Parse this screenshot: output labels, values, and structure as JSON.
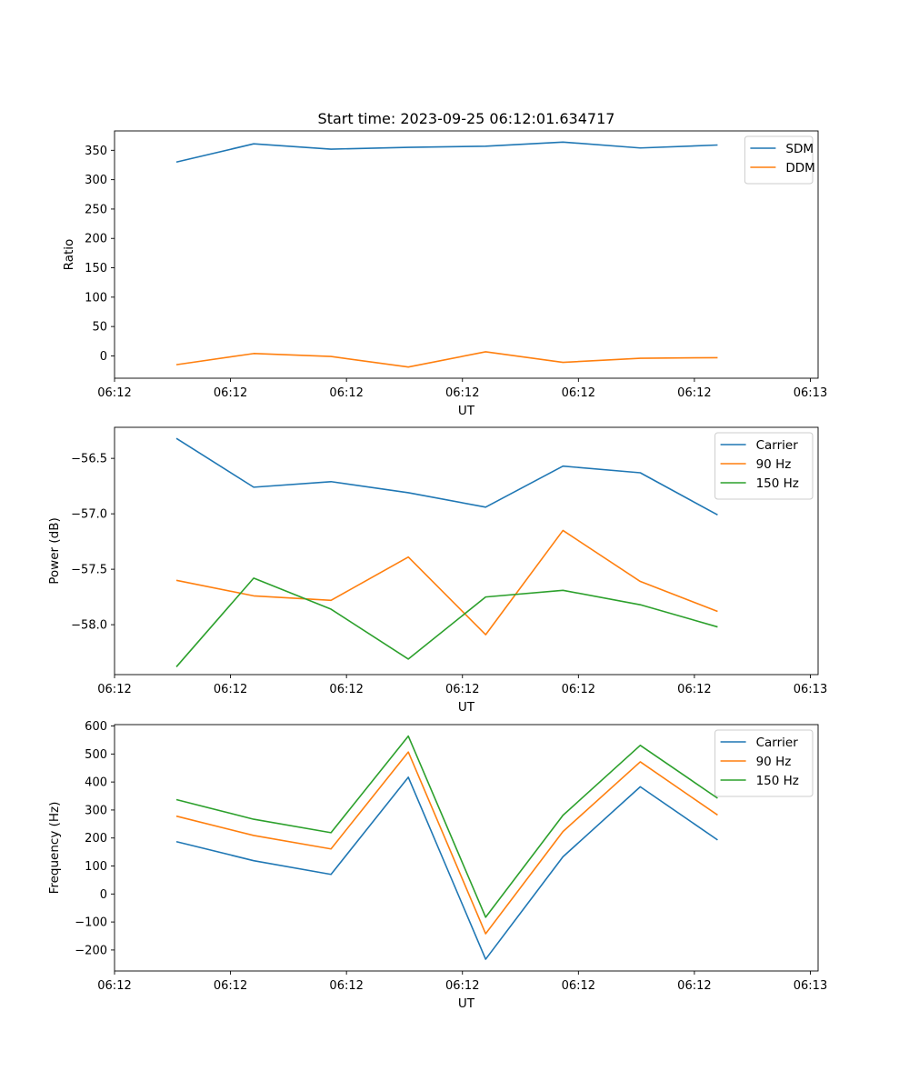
{
  "figure": {
    "title": "Start time: 2023-09-25 06:12:01.634717"
  },
  "colors": {
    "blue": "#1f77b4",
    "orange": "#ff7f0e",
    "green": "#2ca02c"
  },
  "chart_data": [
    {
      "type": "line",
      "id": "ratio",
      "title": "Start time: 2023-09-25 06:12:01.634717",
      "xlabel": "UT",
      "ylabel": "Ratio",
      "xlim": [
        -0.6,
        8.5
      ],
      "ylim": [
        -38,
        383
      ],
      "x": [
        0.2,
        1.2,
        2.2,
        3.2,
        4.2,
        5.2,
        6.2,
        7.2
      ],
      "x_tick_positions": [
        -0.6,
        0.9,
        2.4,
        3.9,
        5.4,
        6.9,
        8.4
      ],
      "x_tick_labels": [
        "06:12",
        "06:12",
        "06:12",
        "06:12",
        "06:12",
        "06:12",
        "06:13"
      ],
      "y_ticks": [
        0,
        50,
        100,
        150,
        200,
        250,
        300,
        350
      ],
      "legend": "top-right",
      "series": [
        {
          "name": "SDM",
          "color": "blue",
          "values": [
            330,
            361,
            352,
            355,
            357,
            364,
            354,
            359
          ]
        },
        {
          "name": "DDM",
          "color": "orange",
          "values": [
            -15,
            4,
            -1,
            -19,
            7,
            -11,
            -4,
            -3
          ]
        }
      ]
    },
    {
      "type": "line",
      "id": "power",
      "title": "",
      "xlabel": "UT",
      "ylabel": "Power (dB)",
      "xlim": [
        -0.6,
        8.5
      ],
      "ylim": [
        -58.45,
        -56.22
      ],
      "x": [
        0.2,
        1.2,
        2.2,
        3.2,
        4.2,
        5.2,
        6.2,
        7.2
      ],
      "x_tick_positions": [
        -0.6,
        0.9,
        2.4,
        3.9,
        5.4,
        6.9,
        8.4
      ],
      "x_tick_labels": [
        "06:12",
        "06:12",
        "06:12",
        "06:12",
        "06:12",
        "06:12",
        "06:13"
      ],
      "y_ticks": [
        -56.5,
        -57.0,
        -57.5,
        -58.0
      ],
      "y_tick_labels": [
        "−56.5",
        "−57.0",
        "−57.5",
        "−58.0"
      ],
      "legend": "top-right",
      "series": [
        {
          "name": "Carrier",
          "color": "blue",
          "values": [
            -56.32,
            -56.76,
            -56.71,
            -56.81,
            -56.94,
            -56.57,
            -56.63,
            -57.01
          ]
        },
        {
          "name": "90 Hz",
          "color": "orange",
          "values": [
            -57.6,
            -57.74,
            -57.78,
            -57.39,
            -58.09,
            -57.15,
            -57.61,
            -57.88
          ]
        },
        {
          "name": "150 Hz",
          "color": "green",
          "values": [
            -58.38,
            -57.58,
            -57.86,
            -58.31,
            -57.75,
            -57.69,
            -57.82,
            -58.02
          ]
        }
      ]
    },
    {
      "type": "line",
      "id": "frequency",
      "title": "",
      "xlabel": "UT",
      "ylabel": "Frequency (Hz)",
      "xlim": [
        -0.6,
        8.5
      ],
      "ylim": [
        -275,
        605
      ],
      "x": [
        0.2,
        1.2,
        2.2,
        3.2,
        4.2,
        5.2,
        6.2,
        7.2
      ],
      "x_tick_positions": [
        -0.6,
        0.9,
        2.4,
        3.9,
        5.4,
        6.9,
        8.4
      ],
      "x_tick_labels": [
        "06:12",
        "06:12",
        "06:12",
        "06:12",
        "06:12",
        "06:12",
        "06:13"
      ],
      "y_ticks": [
        -200,
        -100,
        0,
        100,
        200,
        300,
        400,
        500,
        600
      ],
      "y_tick_labels": [
        "−200",
        "−100",
        "0",
        "100",
        "200",
        "300",
        "400",
        "500",
        "600"
      ],
      "legend": "top-right",
      "series": [
        {
          "name": "Carrier",
          "color": "blue",
          "values": [
            187,
            119,
            70,
            417,
            -233,
            133,
            383,
            193
          ]
        },
        {
          "name": "90 Hz",
          "color": "orange",
          "values": [
            278,
            209,
            161,
            507,
            -142,
            223,
            472,
            282
          ]
        },
        {
          "name": "150 Hz",
          "color": "green",
          "values": [
            337,
            267,
            219,
            564,
            -83,
            281,
            531,
            342
          ]
        }
      ]
    }
  ]
}
